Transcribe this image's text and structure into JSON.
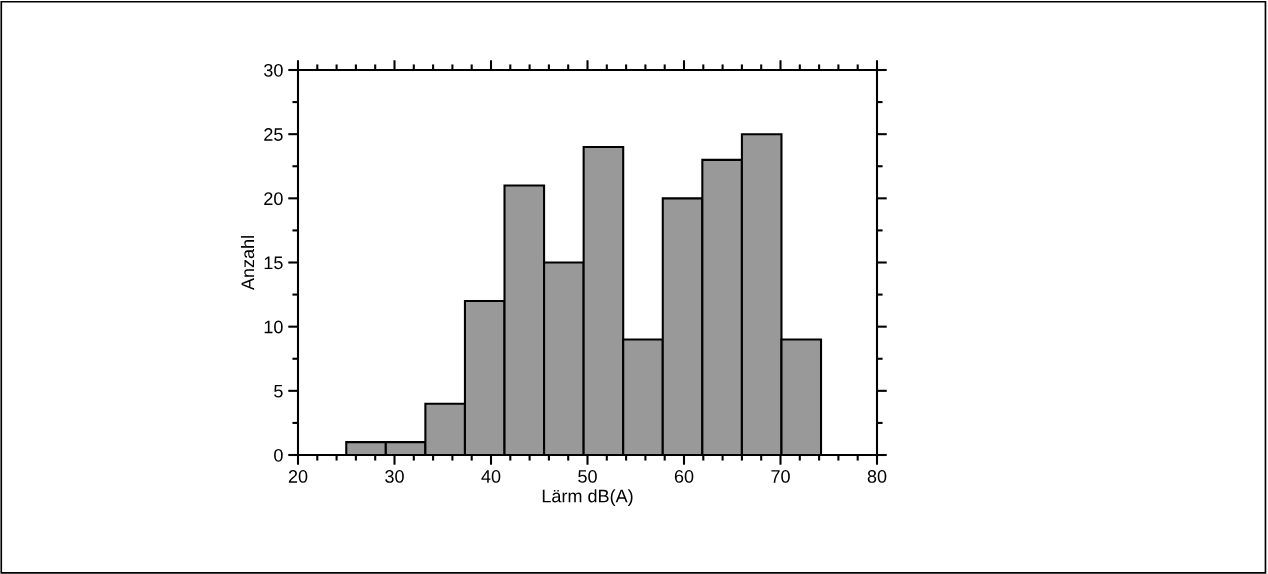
{
  "chart_data": {
    "type": "histogram",
    "xlabel": "Lärm dB(A)",
    "ylabel": "Anzahl",
    "bins": [
      25,
      29.1,
      33.2,
      37.3,
      41.4,
      45.5,
      49.6,
      53.7,
      57.8,
      61.9,
      66,
      70.1,
      74.2
    ],
    "values": [
      1,
      1,
      4,
      12,
      21,
      15,
      24,
      9,
      20,
      23,
      25,
      9
    ],
    "color": "#999999",
    "xlim": [
      20,
      80
    ],
    "xticks": [
      20,
      30,
      40,
      50,
      60,
      70,
      80
    ],
    "ylim": [
      0,
      30
    ],
    "yticks": [
      0,
      5,
      10,
      15,
      20,
      25,
      30
    ],
    "grid": false
  }
}
